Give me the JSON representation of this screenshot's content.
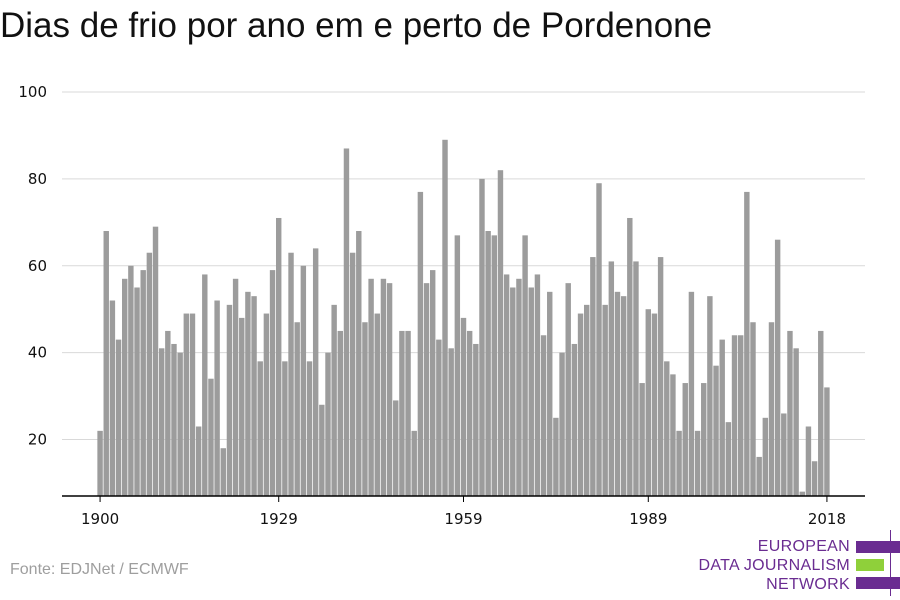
{
  "title": "Dias de frio por ano em e perto de Pordenone",
  "source": "Fonte: EDJNet / ECMWF",
  "logo": {
    "lines": [
      "EUROPEAN",
      "DATA JOURNALISM",
      "NETWORK"
    ]
  },
  "colors": {
    "bar": "#9c9c9c",
    "grid": "#d9d9d9",
    "axis": "#000000",
    "logo_purple": "#6a2c91",
    "logo_green": "#8fd03a"
  },
  "chart_data": {
    "type": "bar",
    "title": "Dias de frio por ano em e perto de Pordenone",
    "xlabel": "",
    "ylabel": "",
    "x": [
      1900,
      1901,
      1902,
      1903,
      1904,
      1905,
      1906,
      1907,
      1908,
      1909,
      1910,
      1911,
      1912,
      1913,
      1914,
      1915,
      1916,
      1917,
      1918,
      1919,
      1920,
      1921,
      1922,
      1923,
      1924,
      1925,
      1926,
      1927,
      1928,
      1929,
      1930,
      1931,
      1932,
      1933,
      1934,
      1935,
      1936,
      1937,
      1938,
      1939,
      1940,
      1941,
      1942,
      1943,
      1944,
      1945,
      1946,
      1947,
      1948,
      1949,
      1950,
      1951,
      1952,
      1953,
      1954,
      1955,
      1956,
      1957,
      1958,
      1959,
      1960,
      1961,
      1962,
      1963,
      1964,
      1965,
      1966,
      1967,
      1968,
      1969,
      1970,
      1971,
      1972,
      1973,
      1974,
      1975,
      1976,
      1977,
      1978,
      1979,
      1980,
      1981,
      1982,
      1983,
      1984,
      1985,
      1986,
      1987,
      1988,
      1989,
      1990,
      1991,
      1992,
      1993,
      1994,
      1995,
      1996,
      1997,
      1998,
      1999,
      2000,
      2001,
      2002,
      2003,
      2004,
      2005,
      2006,
      2007,
      2008,
      2009,
      2010,
      2011,
      2012,
      2013,
      2014,
      2015,
      2016,
      2017,
      2018
    ],
    "values": [
      22,
      68,
      52,
      43,
      57,
      60,
      55,
      59,
      63,
      69,
      41,
      45,
      42,
      40,
      49,
      49,
      23,
      58,
      34,
      52,
      18,
      51,
      57,
      48,
      54,
      53,
      38,
      49,
      59,
      71,
      38,
      63,
      47,
      60,
      38,
      64,
      28,
      40,
      51,
      45,
      87,
      63,
      68,
      47,
      57,
      49,
      57,
      56,
      29,
      45,
      45,
      22,
      77,
      56,
      59,
      43,
      89,
      41,
      67,
      48,
      45,
      42,
      80,
      68,
      67,
      82,
      58,
      55,
      57,
      67,
      55,
      58,
      44,
      54,
      25,
      40,
      56,
      42,
      49,
      51,
      62,
      79,
      51,
      61,
      54,
      53,
      71,
      61,
      33,
      50,
      49,
      62,
      38,
      35,
      22,
      33,
      54,
      22,
      33,
      53,
      37,
      43,
      24,
      44,
      44,
      77,
      47,
      16,
      25,
      47,
      66,
      26,
      45,
      41,
      8,
      23,
      15,
      45,
      32
    ],
    "x_ticks": [
      "1900",
      "1929",
      "1959",
      "1989",
      "2018"
    ],
    "y_ticks": [
      "20",
      "40",
      "60",
      "80",
      "100"
    ],
    "ylim": [
      7,
      100
    ],
    "grid": true,
    "legend": "none"
  }
}
